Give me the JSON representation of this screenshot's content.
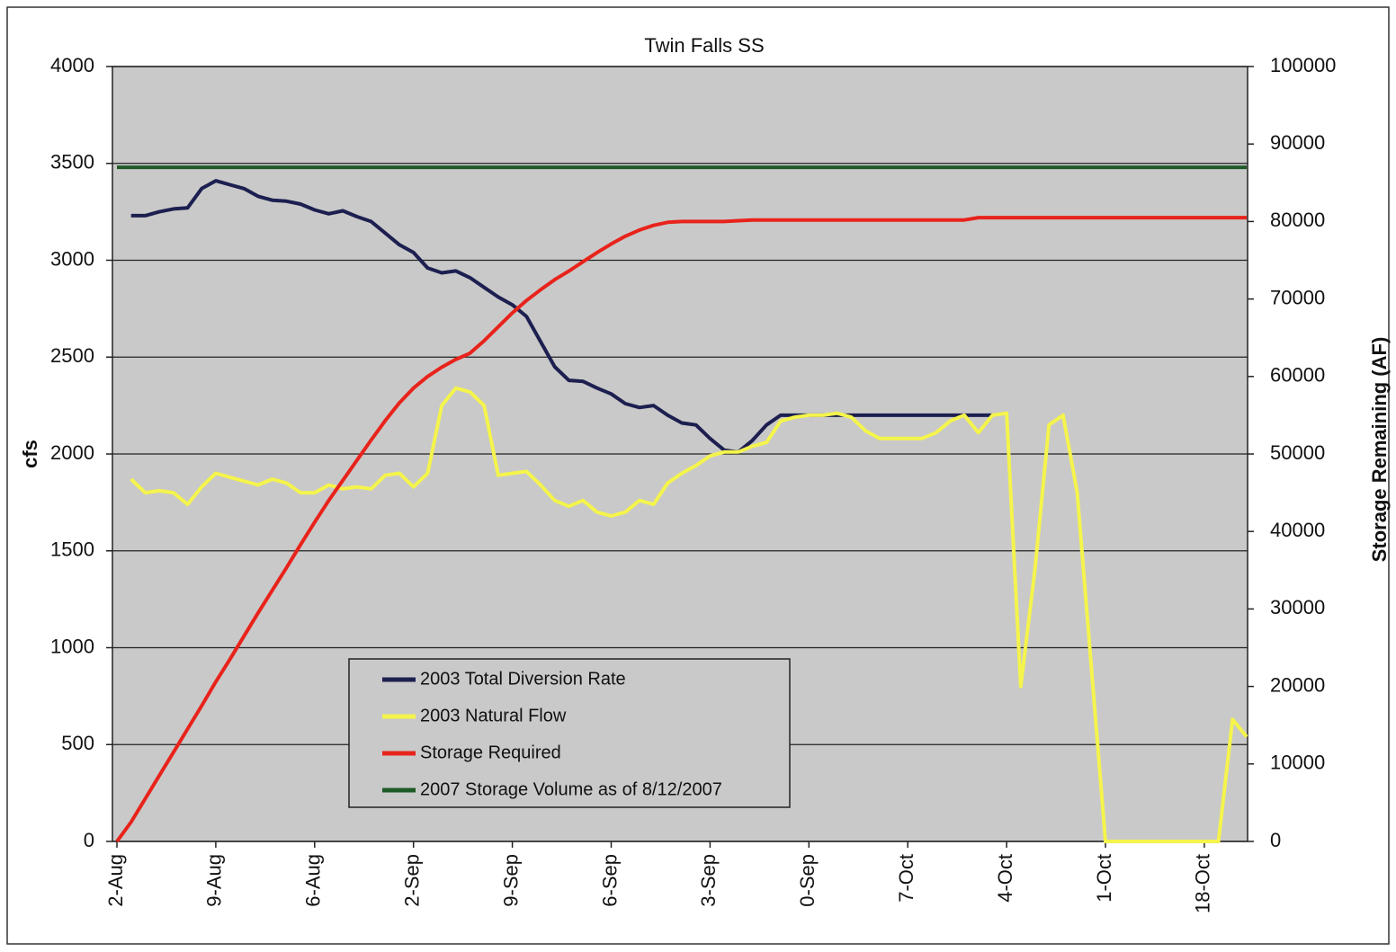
{
  "chart_data": {
    "type": "line",
    "title": "Twin Falls SS",
    "y_label": "cfs",
    "y2_label": "Storage Remaining (AF)",
    "categories": [
      "2-Aug",
      null,
      null,
      null,
      null,
      null,
      null,
      "9-Aug",
      null,
      null,
      null,
      null,
      null,
      null,
      "6-Aug",
      null,
      null,
      null,
      null,
      null,
      null,
      "2-Sep",
      null,
      null,
      null,
      null,
      null,
      null,
      "9-Sep",
      null,
      null,
      null,
      null,
      null,
      null,
      "6-Sep",
      null,
      null,
      null,
      null,
      null,
      null,
      "3-Sep",
      null,
      null,
      null,
      null,
      null,
      null,
      "0-Sep",
      null,
      null,
      null,
      null,
      null,
      null,
      "7-Oct",
      null,
      null,
      null,
      null,
      null,
      null,
      "4-Oct",
      null,
      null,
      null,
      null,
      null,
      null,
      "1-Oct",
      null,
      null,
      null,
      null,
      null,
      null,
      "18-Oct",
      null,
      null,
      null
    ],
    "ylim": [
      0,
      4000
    ],
    "yticks": [
      0,
      500,
      1000,
      1500,
      2000,
      2500,
      3000,
      3500,
      4000
    ],
    "y2lim": [
      0,
      100000
    ],
    "y2ticks": [
      0,
      10000,
      20000,
      30000,
      40000,
      50000,
      60000,
      70000,
      80000,
      90000,
      100000
    ],
    "grid": true,
    "legend": "lower left",
    "series": [
      {
        "name": "2003 Total Diversion Rate",
        "color": "#1c1f4f",
        "values": [
          null,
          3230,
          3230,
          3250,
          3265,
          3270,
          3370,
          3410,
          3390,
          3370,
          3330,
          3310,
          3305,
          3290,
          3260,
          3240,
          3255,
          3225,
          3200,
          3140,
          3080,
          3040,
          2960,
          2935,
          2945,
          2910,
          2860,
          2810,
          2770,
          2710,
          2580,
          2450,
          2380,
          2375,
          2340,
          2310,
          2260,
          2240,
          2250,
          2200,
          2160,
          2150,
          2080,
          2020,
          2010,
          2070,
          2150,
          2200,
          2200,
          2200,
          2200,
          2200,
          2200,
          2200,
          2200,
          2200,
          2200,
          2200,
          2200,
          2200,
          2200,
          2200,
          2200,
          null,
          null,
          null,
          null,
          null,
          null,
          null,
          null,
          null,
          null,
          null,
          null,
          null,
          null,
          null,
          null,
          null,
          null
        ]
      },
      {
        "name": "2003 Natural Flow",
        "color": "#f4f44c",
        "values": [
          null,
          1870,
          1800,
          1810,
          1800,
          1740,
          1830,
          1900,
          1880,
          1860,
          1840,
          1870,
          1850,
          1800,
          1800,
          1840,
          1820,
          1830,
          1820,
          1890,
          1900,
          1830,
          1900,
          2250,
          2340,
          2320,
          2250,
          1890,
          1900,
          1910,
          1840,
          1760,
          1730,
          1760,
          1700,
          1680,
          1700,
          1760,
          1740,
          1850,
          1900,
          1940,
          1990,
          2010,
          2010,
          2040,
          2060,
          2170,
          2190,
          2200,
          2200,
          2210,
          2190,
          2120,
          2080,
          2080,
          2080,
          2080,
          2110,
          2170,
          2200,
          2110,
          2200,
          2210,
          800,
          1400,
          2150,
          2200,
          1800,
          900,
          0,
          0,
          0,
          0,
          0,
          0,
          0,
          0,
          0,
          630,
          540
        ]
      },
      {
        "name": "Storage Required",
        "color": "#e8231b",
        "axis": "y2",
        "values": [
          0,
          2500,
          5500,
          8500,
          11500,
          14500,
          17500,
          20600,
          23500,
          26500,
          29500,
          32400,
          35300,
          38300,
          41200,
          44000,
          46600,
          49200,
          51800,
          54300,
          56600,
          58500,
          60000,
          61200,
          62200,
          63000,
          64600,
          66400,
          68200,
          69800,
          71200,
          72500,
          73600,
          74800,
          76000,
          77100,
          78100,
          78900,
          79500,
          79900,
          80000,
          80000,
          80000,
          80000,
          80100,
          80200,
          80200,
          80200,
          80200,
          80200,
          80200,
          80200,
          80200,
          80200,
          80200,
          80200,
          80200,
          80200,
          80200,
          80200,
          80200,
          80500,
          80500,
          80500,
          80500,
          80500,
          80500,
          80500,
          80500,
          80500,
          80500,
          80500,
          80500,
          80500,
          80500,
          80500,
          80500,
          80500,
          80500,
          80500,
          80500
        ]
      },
      {
        "name": "2007 Storage Volume as of 8/12/2007",
        "color": "#1e5a28",
        "axis": "y2",
        "values": [
          87000,
          87000,
          87000,
          87000,
          87000,
          87000,
          87000,
          87000,
          87000,
          87000,
          87000,
          87000,
          87000,
          87000,
          87000,
          87000,
          87000,
          87000,
          87000,
          87000,
          87000,
          87000,
          87000,
          87000,
          87000,
          87000,
          87000,
          87000,
          87000,
          87000,
          87000,
          87000,
          87000,
          87000,
          87000,
          87000,
          87000,
          87000,
          87000,
          87000,
          87000,
          87000,
          87000,
          87000,
          87000,
          87000,
          87000,
          87000,
          87000,
          87000,
          87000,
          87000,
          87000,
          87000,
          87000,
          87000,
          87000,
          87000,
          87000,
          87000,
          87000,
          87000,
          87000,
          87000,
          87000,
          87000,
          87000,
          87000,
          87000,
          87000,
          87000,
          87000,
          87000,
          87000,
          87000,
          87000,
          87000,
          87000,
          87000,
          87000,
          87000
        ]
      }
    ]
  }
}
